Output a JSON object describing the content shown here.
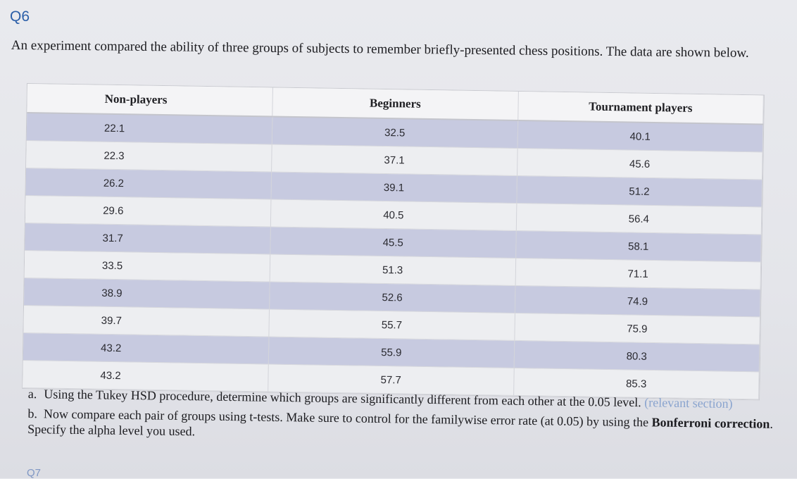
{
  "question": {
    "label": "Q6",
    "intro": "An experiment compared the ability of three groups of subjects to remember briefly-presented chess positions. The data are shown below."
  },
  "table": {
    "headers": [
      "Non-players",
      "Beginners",
      "Tournament players"
    ],
    "rows": [
      [
        "22.1",
        "32.5",
        "40.1"
      ],
      [
        "22.3",
        "37.1",
        "45.6"
      ],
      [
        "26.2",
        "39.1",
        "51.2"
      ],
      [
        "29.6",
        "40.5",
        "56.4"
      ],
      [
        "31.7",
        "45.5",
        "58.1"
      ],
      [
        "33.5",
        "51.3",
        "71.1"
      ],
      [
        "38.9",
        "52.6",
        "74.9"
      ],
      [
        "39.7",
        "55.7",
        "75.9"
      ],
      [
        "43.2",
        "55.9",
        "80.3"
      ],
      [
        "43.2",
        "57.7",
        "85.3"
      ]
    ]
  },
  "parts": {
    "a": {
      "marker": "a.",
      "text": "Using the Tukey HSD procedure, determine which groups are significantly different from each other at the 0.05 level.",
      "link": "(relevant section)"
    },
    "b": {
      "marker": "b.",
      "text_before": "Now compare each pair of groups using t-tests. Make sure to control for the familywise error rate (at 0.05) by using the",
      "bold": "Bonferroni correction",
      "text_after": ". Specify the alpha level you used."
    }
  },
  "next_label": "Q7"
}
